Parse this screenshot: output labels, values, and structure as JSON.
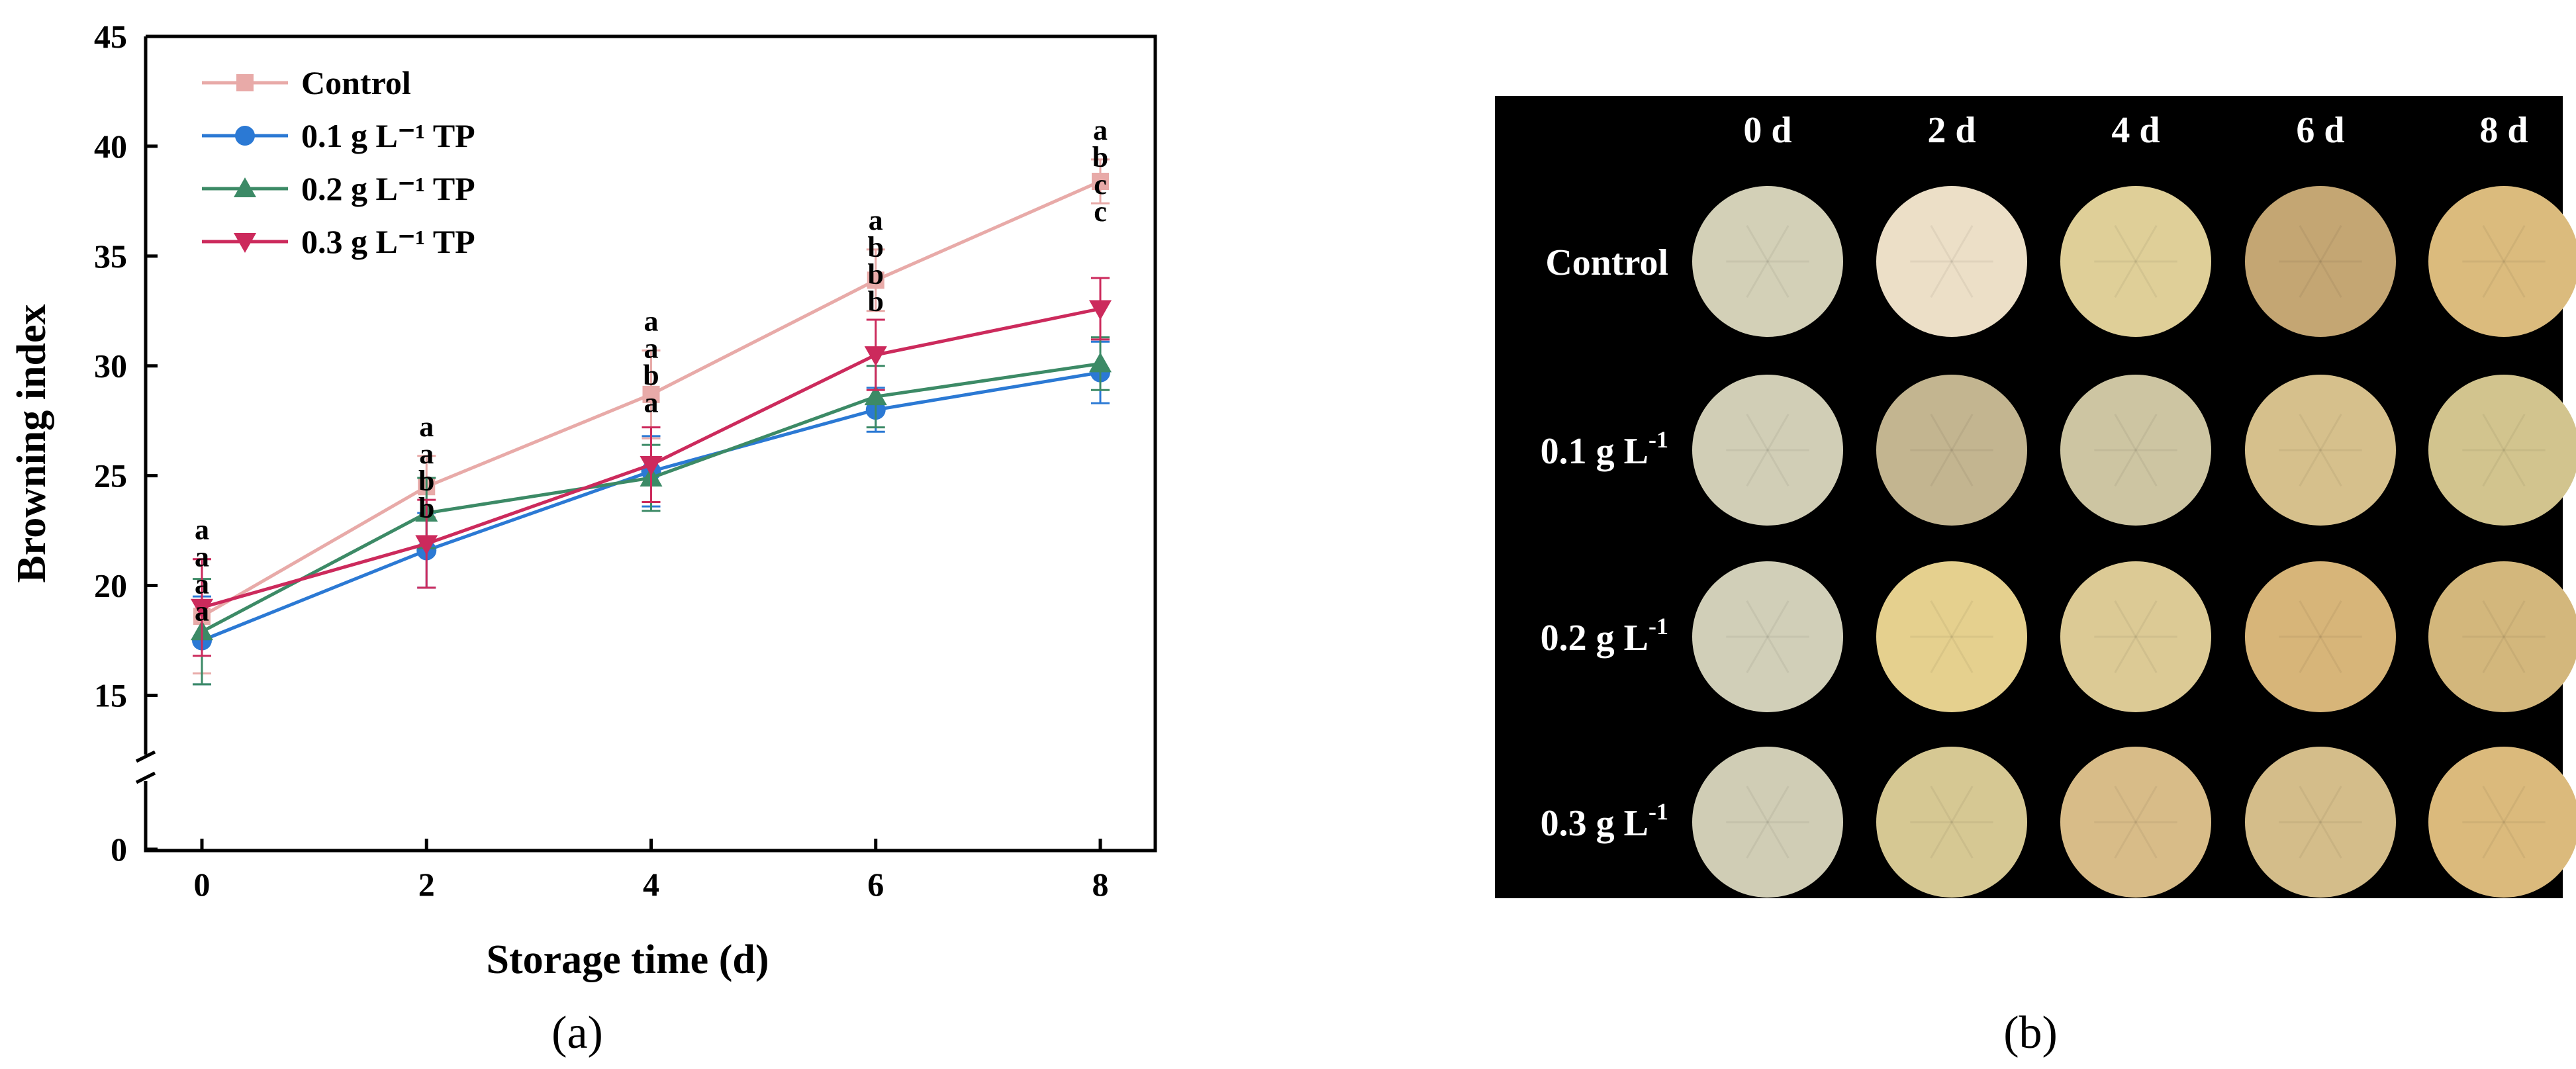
{
  "chart_data": {
    "type": "line",
    "xlabel": "Storage time (d)",
    "ylabel": "Browning index",
    "x": [
      0,
      2,
      4,
      6,
      8
    ],
    "xticks": [
      "0",
      "2",
      "4",
      "6",
      "8"
    ],
    "yticks": [
      "0",
      "15",
      "20",
      "25",
      "30",
      "35",
      "40",
      "45"
    ],
    "ylim": [
      12,
      45
    ],
    "axis_break": true,
    "grid": false,
    "legend_position": "top-left",
    "series": [
      {
        "name": "Control",
        "color": "#e8aaa8",
        "marker": "square",
        "values": [
          18.6,
          24.5,
          28.7,
          33.9,
          38.4
        ],
        "errors": [
          2.6,
          1.4,
          2.0,
          1.4,
          1.0
        ],
        "sig": [
          "a",
          "a",
          "a",
          "a",
          "a"
        ]
      },
      {
        "name": "0.1 g L⁻¹ TP",
        "color": "#2b79d4",
        "marker": "circle",
        "values": [
          17.5,
          21.6,
          25.2,
          28.0,
          29.7
        ],
        "errors": [
          2.0,
          1.7,
          1.6,
          1.0,
          1.4
        ],
        "sig": [
          "a",
          "b",
          "b",
          "b",
          "c"
        ]
      },
      {
        "name": "0.2 g L⁻¹ TP",
        "color": "#3c8a66",
        "marker": "triangle-up",
        "values": [
          17.9,
          23.3,
          24.9,
          28.6,
          30.1
        ],
        "errors": [
          2.4,
          1.6,
          1.5,
          1.4,
          1.2
        ],
        "sig": [
          "a",
          "a",
          "a",
          "b",
          "c"
        ]
      },
      {
        "name": "0.3 g L⁻¹ TP",
        "color": "#cc2a5c",
        "marker": "triangle-down",
        "values": [
          19.0,
          21.9,
          25.5,
          30.5,
          32.6
        ],
        "errors": [
          2.2,
          2.0,
          1.7,
          1.6,
          1.4
        ],
        "sig": [
          "a",
          "b",
          "a",
          "b",
          "b"
        ]
      }
    ]
  },
  "panel_a_label": "(a)",
  "panel_b_label": "(b)",
  "photo_grid": {
    "column_headers": [
      "0 d",
      "2 d",
      "4 d",
      "6 d",
      "8 d"
    ],
    "row_labels": [
      {
        "main": "Control",
        "sup": ""
      },
      {
        "main": "0.1 g L",
        "sup": "-1"
      },
      {
        "main": "0.2 g L",
        "sup": "-1"
      },
      {
        "main": "0.3 g L",
        "sup": "-1"
      }
    ],
    "sample_colors": [
      [
        "#d3d0b7",
        "#ecdfc7",
        "#dfcf98",
        "#c4a673",
        "#dbbb7d"
      ],
      [
        "#d1ceb6",
        "#c3b590",
        "#cdc5a2",
        "#d6c08c",
        "#d2c48e"
      ],
      [
        "#d1cfb8",
        "#e5d08e",
        "#dcca95",
        "#d7b579",
        "#d3b77c"
      ],
      [
        "#d0cdb5",
        "#d6c893",
        "#d8bc88",
        "#d4bd8a",
        "#dbba7c"
      ]
    ]
  }
}
